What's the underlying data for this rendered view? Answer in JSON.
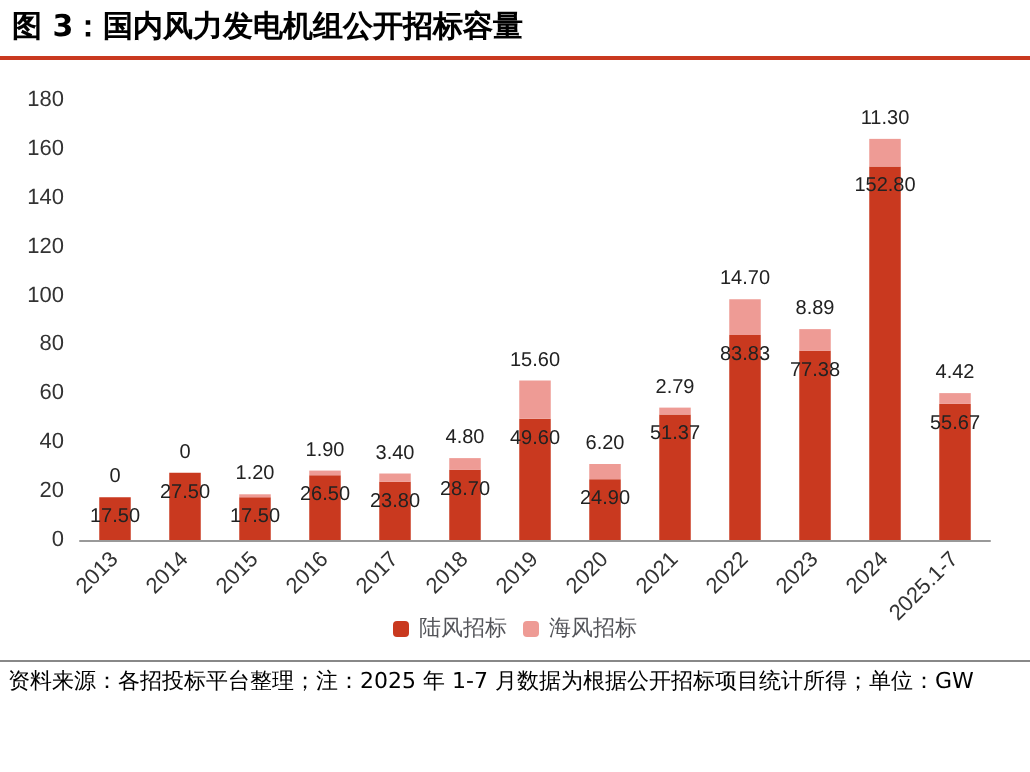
{
  "chart_data": {
    "type": "bar",
    "title": "图 3：国内风力发电机组公开招标容量",
    "categories": [
      "2013",
      "2014",
      "2015",
      "2016",
      "2017",
      "2018",
      "2019",
      "2020",
      "2021",
      "2022",
      "2023",
      "2024",
      "2025.1-7"
    ],
    "series": [
      {
        "name": "陆风招标",
        "color": "#c9391f",
        "values": [
          17.5,
          27.5,
          17.5,
          26.5,
          23.8,
          28.7,
          49.6,
          24.9,
          51.37,
          83.83,
          77.38,
          152.8,
          55.67
        ],
        "value_labels": [
          "17.50",
          "27.50",
          "17.50",
          "26.50",
          "23.80",
          "28.70",
          "49.60",
          "24.90",
          "51.37",
          "83.83",
          "77.38",
          "152.80",
          "55.67"
        ]
      },
      {
        "name": "海风招标",
        "color": "#ee9b95",
        "values": [
          0,
          0,
          1.2,
          1.9,
          3.4,
          4.8,
          15.6,
          6.2,
          2.79,
          14.7,
          8.89,
          11.3,
          4.42
        ],
        "value_labels": [
          "0",
          "0",
          "1.20",
          "1.90",
          "3.40",
          "4.80",
          "15.60",
          "6.20",
          "2.79",
          "14.70",
          "8.89",
          "11.30",
          "4.42"
        ]
      }
    ],
    "stacked": true,
    "ylim": [
      0,
      180
    ],
    "yticks": [
      0,
      20,
      40,
      60,
      80,
      100,
      120,
      140,
      160,
      180
    ],
    "grid": false,
    "legend": "bottom",
    "annotations": [
      "资料来源：各招投标平台整理；注：2025 年 1-7 月数据为根据公开招标项目统计所得；单位：GW"
    ]
  }
}
